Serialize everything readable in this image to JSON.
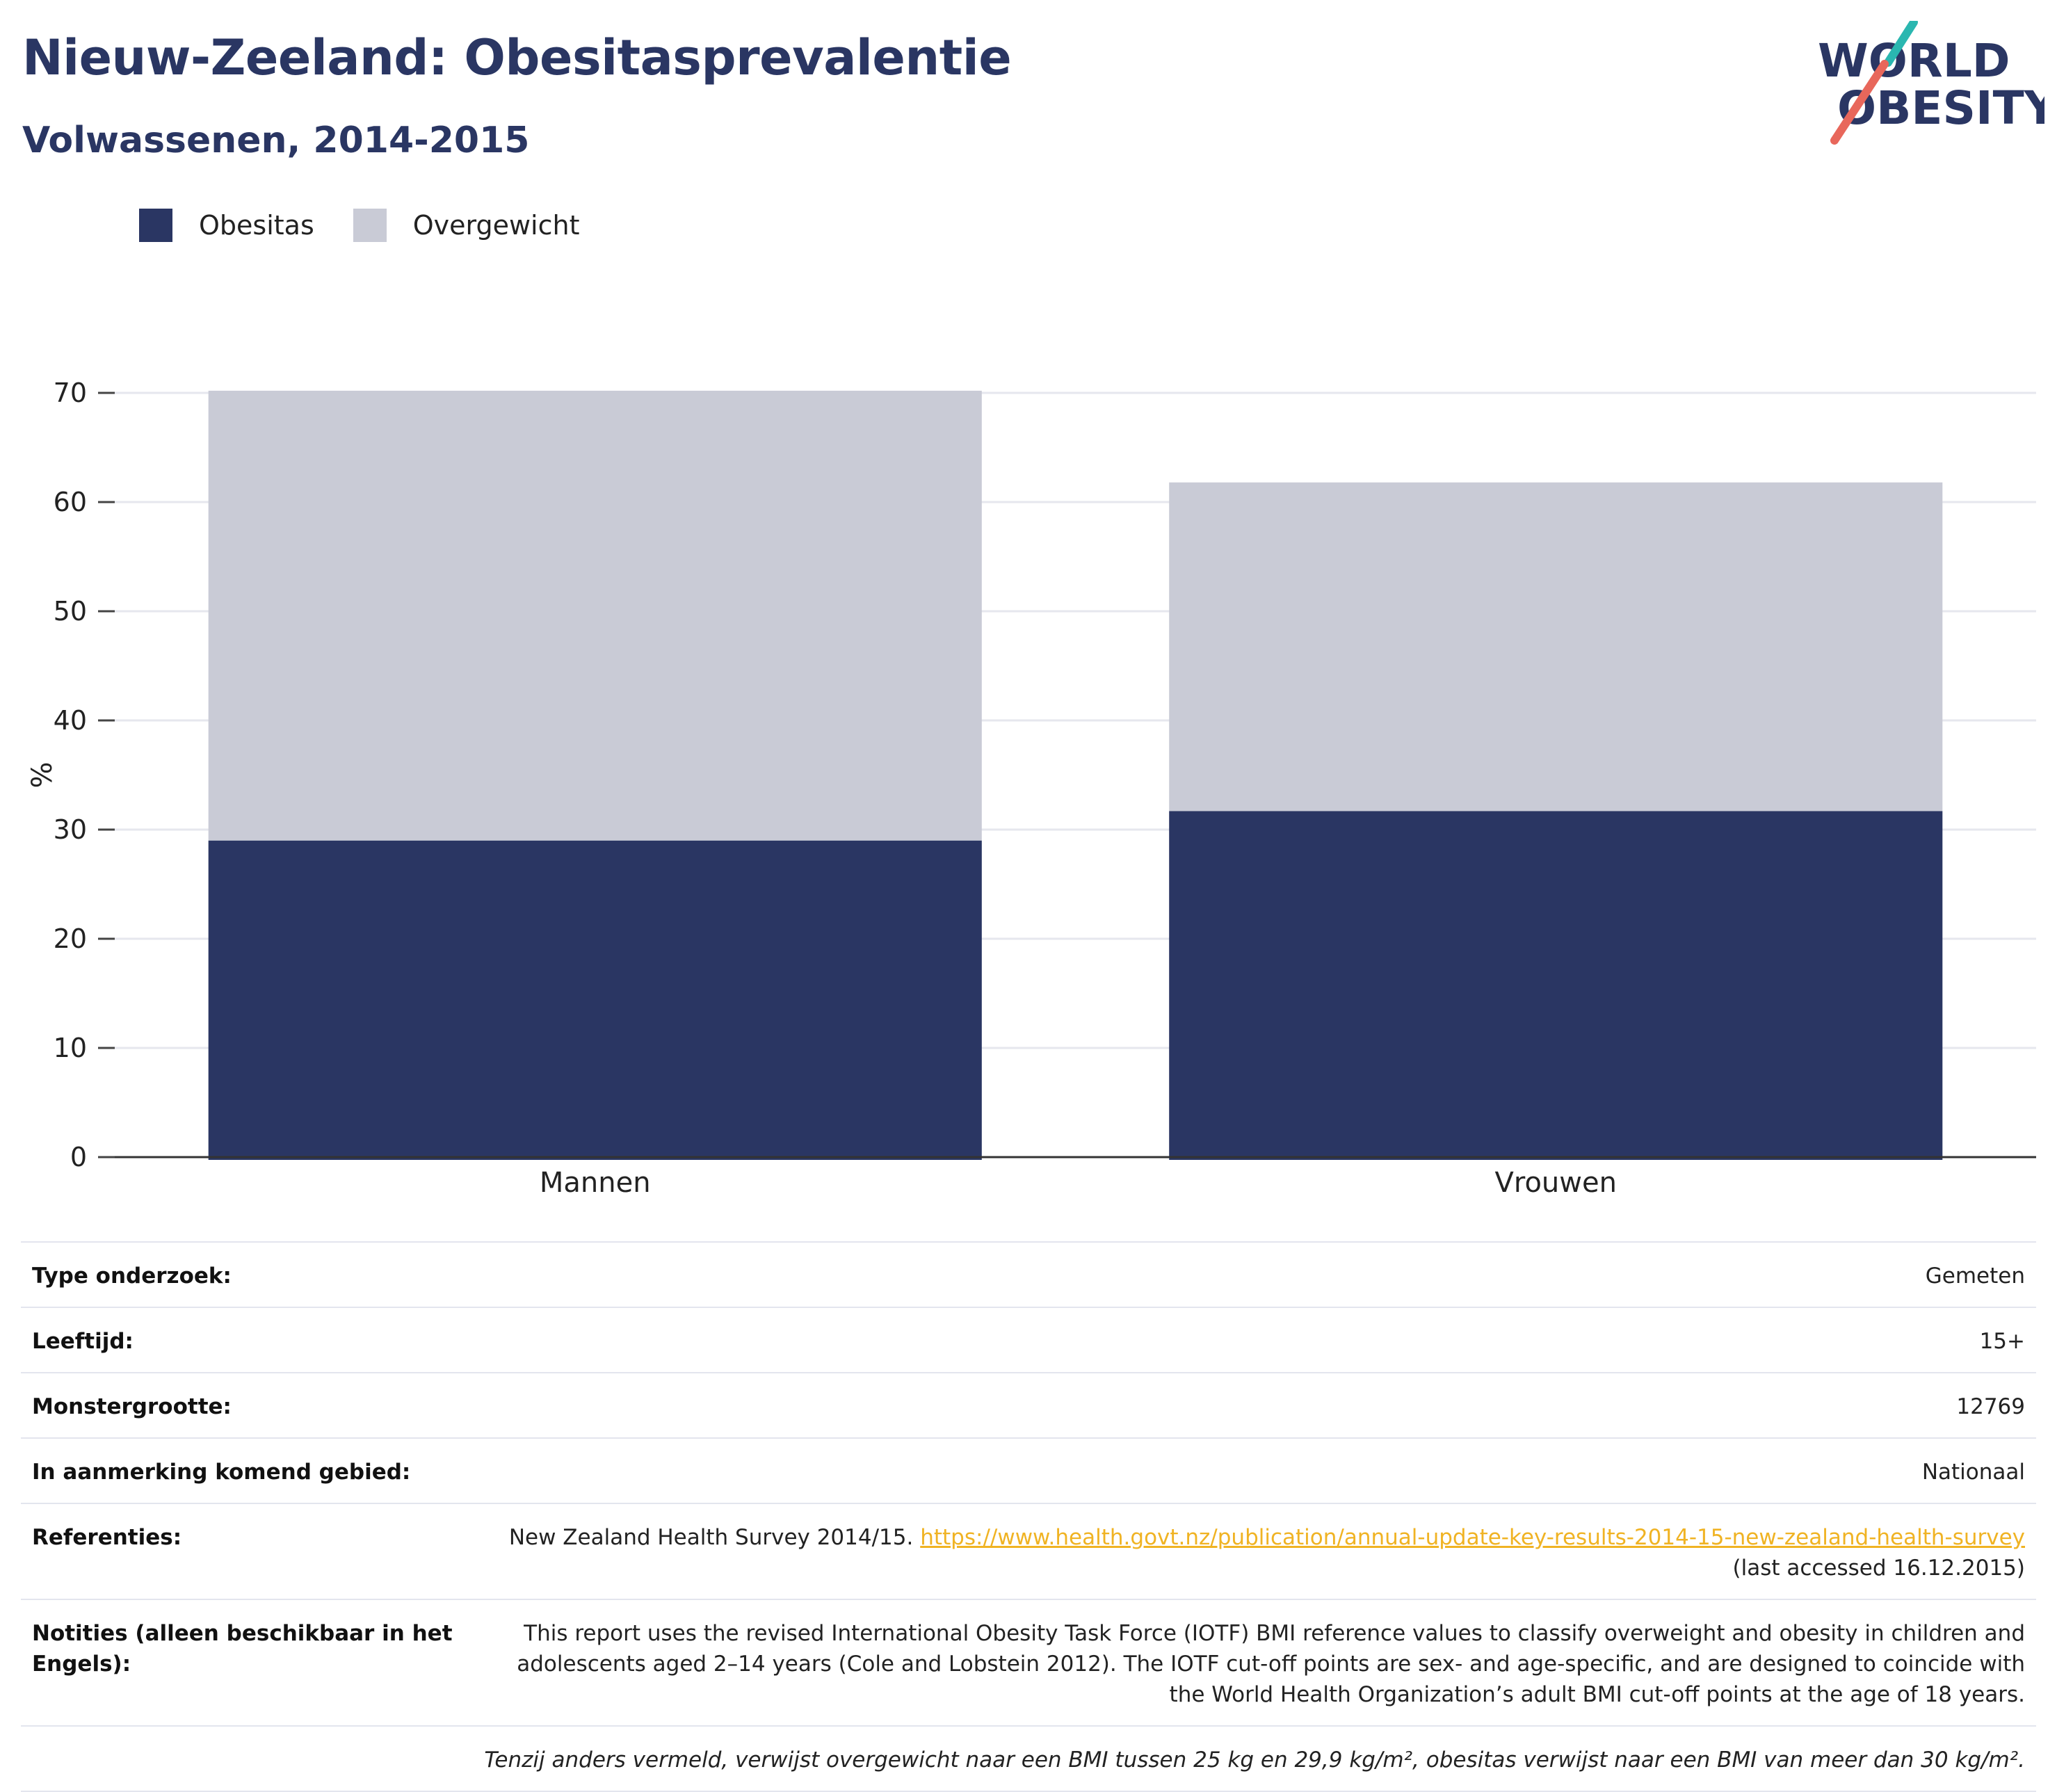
{
  "header": {
    "title": "Nieuw-Zeeland: Obesitasprevalentie",
    "subtitle": "Volwassenen, 2014-2015"
  },
  "logo": {
    "line1": "WORLD",
    "line2": "OBESITY"
  },
  "colors": {
    "obesity": "#2a3663",
    "overweight": "#c9cbd6",
    "title": "#2a3663",
    "link": "#f0b323",
    "accent_teal": "#2ab7b0",
    "accent_red": "#e8675b"
  },
  "legend": [
    {
      "label": "Obesitas",
      "color": "#2a3663"
    },
    {
      "label": "Overgewicht",
      "color": "#c9cbd6"
    }
  ],
  "chart_data": {
    "type": "bar",
    "stacked": true,
    "categories": [
      "Mannen",
      "Vrouwen"
    ],
    "series": [
      {
        "name": "Obesitas",
        "values": [
          29.0,
          31.7
        ]
      },
      {
        "name": "Overgewicht",
        "values": [
          41.2,
          30.1
        ]
      }
    ],
    "ylabel": "%",
    "ylim": [
      0,
      70
    ],
    "yticks": [
      0,
      10,
      20,
      30,
      40,
      50,
      60,
      70
    ],
    "grid": true,
    "legend_position": "top-left"
  },
  "info": {
    "survey_type": {
      "label": "Type onderzoek:",
      "value": "Gemeten"
    },
    "age": {
      "label": "Leeftijd:",
      "value": "15+"
    },
    "sample_size": {
      "label": "Monstergrootte:",
      "value": "12769"
    },
    "area": {
      "label": "In aanmerking komend gebied:",
      "value": "Nationaal"
    },
    "references": {
      "label": "Referenties:",
      "text_before": "New Zealand Health Survey 2014/15.",
      "link": "https://www.health.govt.nz/publication/annual-update-key-results-2014-15-new-zealand-health-survey",
      "text_after": "(last accessed 16.12.2015)"
    },
    "notes": {
      "label": "Notities (alleen beschikbaar in het Engels):",
      "value": "This report uses the revised International Obesity Task Force (IOTF) BMI reference values to classify overweight and obesity in children and adolescents aged 2–14 years (Cole and Lobstein 2012). The IOTF cut-off points are sex- and age-specific, and are designed to coincide with the World Health Organization’s adult BMI cut-off points at the age of 18 years."
    },
    "footnote": "Tenzij anders vermeld, verwijst overgewicht naar een BMI tussen 25 kg en 29,9 kg/m², obesitas verwijst naar een BMI van meer dan 30 kg/m²."
  }
}
